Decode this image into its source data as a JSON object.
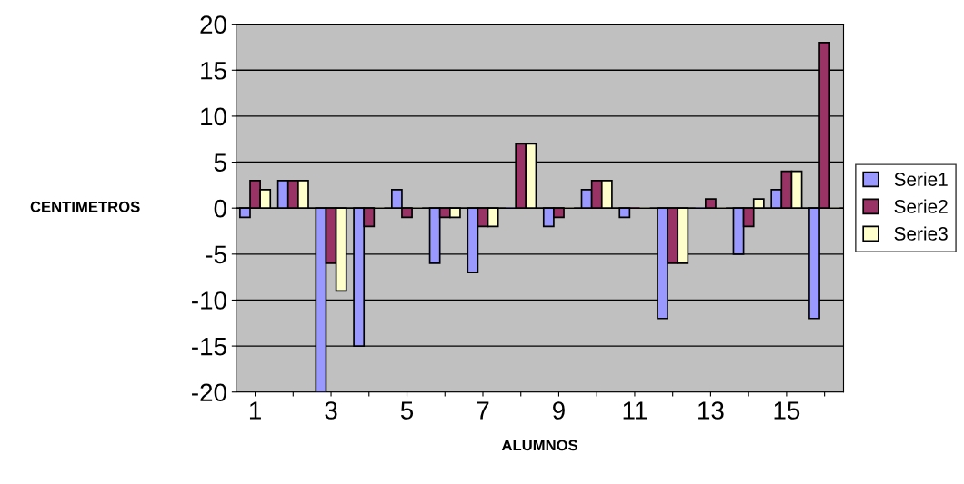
{
  "chart_data": {
    "type": "bar",
    "xlabel": "ALUMNOS",
    "ylabel": "CENTIMETROS",
    "categories": [
      "1",
      null,
      "3",
      null,
      "5",
      null,
      "7",
      null,
      "9",
      null,
      "11",
      null,
      "13",
      null,
      "15",
      null
    ],
    "series": [
      {
        "name": "Serie1",
        "color": "#9999ff",
        "values": [
          -1,
          3,
          -20,
          -15,
          2,
          -6,
          -7,
          0,
          -2,
          2,
          -1,
          -12,
          0,
          -5,
          2,
          -12
        ]
      },
      {
        "name": "Serie2",
        "color": "#993366",
        "values": [
          3,
          3,
          -6,
          -2,
          -1,
          -1,
          -2,
          7,
          -1,
          3,
          0,
          -6,
          1,
          -2,
          4,
          18
        ]
      },
      {
        "name": "Serie3",
        "color": "#ffffcc",
        "values": [
          2,
          3,
          -9,
          0,
          0,
          -1,
          -2,
          7,
          0,
          3,
          0,
          -6,
          0,
          1,
          4,
          0
        ]
      }
    ],
    "ylim": [
      -20,
      20
    ],
    "yticks": [
      -20,
      -15,
      -10,
      -5,
      0,
      5,
      10,
      15,
      20
    ],
    "grid": "y",
    "legend": "right"
  }
}
